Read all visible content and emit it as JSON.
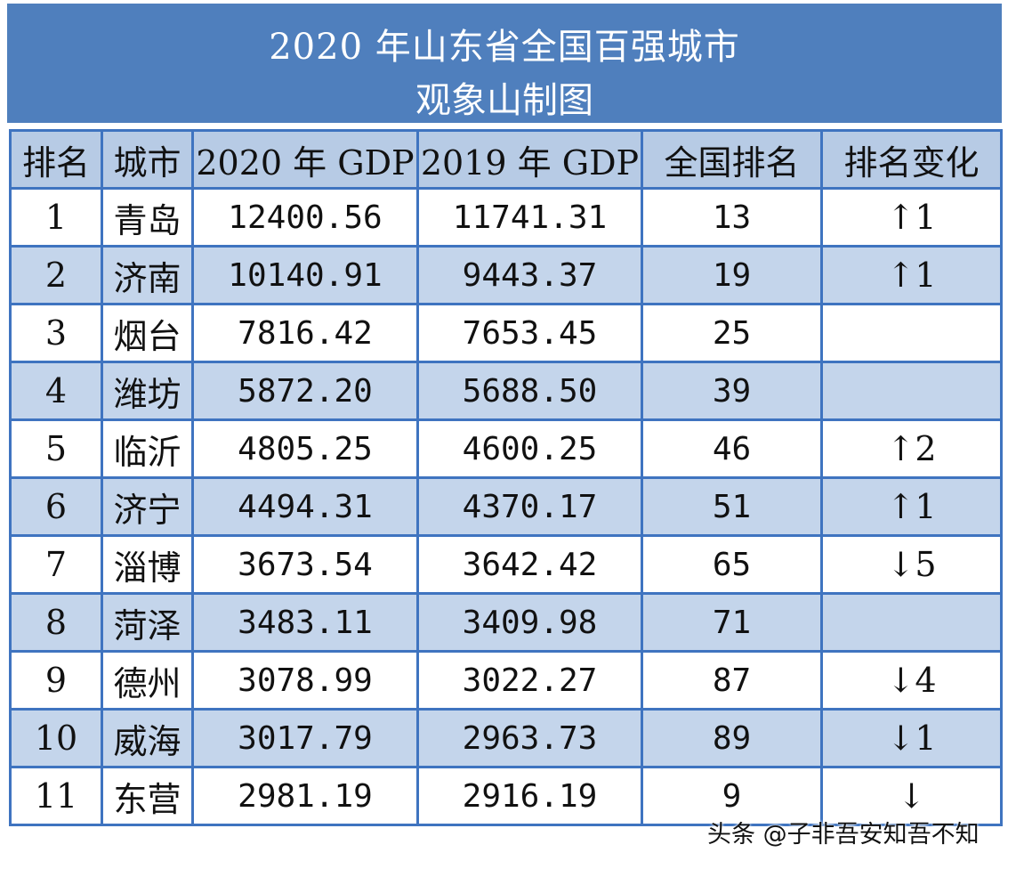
{
  "title": {
    "line1": "2020 年山东省全国百强城市",
    "line2": "观象山制图"
  },
  "columns": [
    "排名",
    "城市",
    "2020 年 GDP",
    "2019 年 GDP",
    "全国排名",
    "排名变化"
  ],
  "rows": [
    {
      "rank": "1",
      "city": "青岛",
      "gdp2020": "12400.56",
      "gdp2019": "11741.31",
      "national": "13",
      "change": "↑1"
    },
    {
      "rank": "2",
      "city": "济南",
      "gdp2020": "10140.91",
      "gdp2019": "9443.37",
      "national": "19",
      "change": "↑1"
    },
    {
      "rank": "3",
      "city": "烟台",
      "gdp2020": "7816.42",
      "gdp2019": "7653.45",
      "national": "25",
      "change": ""
    },
    {
      "rank": "4",
      "city": "潍坊",
      "gdp2020": "5872.20",
      "gdp2019": "5688.50",
      "national": "39",
      "change": ""
    },
    {
      "rank": "5",
      "city": "临沂",
      "gdp2020": "4805.25",
      "gdp2019": "4600.25",
      "national": "46",
      "change": "↑2"
    },
    {
      "rank": "6",
      "city": "济宁",
      "gdp2020": "4494.31",
      "gdp2019": "4370.17",
      "national": "51",
      "change": "↑1"
    },
    {
      "rank": "7",
      "city": "淄博",
      "gdp2020": "3673.54",
      "gdp2019": "3642.42",
      "national": "65",
      "change": "↓5"
    },
    {
      "rank": "8",
      "city": "菏泽",
      "gdp2020": "3483.11",
      "gdp2019": "3409.98",
      "national": "71",
      "change": ""
    },
    {
      "rank": "9",
      "city": "德州",
      "gdp2020": "3078.99",
      "gdp2019": "3022.27",
      "national": "87",
      "change": "↓4"
    },
    {
      "rank": "10",
      "city": "威海",
      "gdp2020": "3017.79",
      "gdp2019": "2963.73",
      "national": "89",
      "change": "↓1"
    },
    {
      "rank": "11",
      "city": "东营",
      "gdp2020": "2981.19",
      "gdp2019": "2916.19",
      "national": "9",
      "change": "↓"
    }
  ],
  "watermark": "头条 @子非吾安知吾不知"
}
